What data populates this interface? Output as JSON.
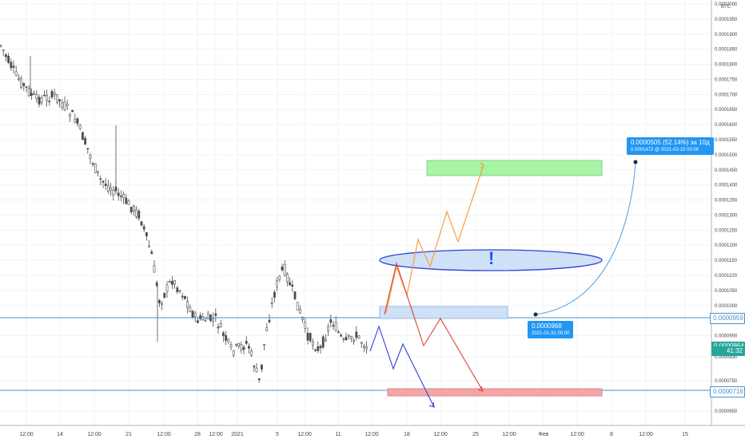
{
  "currency_label": "BTC",
  "price_axis": {
    "ticks": [
      {
        "v": 0.0002,
        "t": "0.0002000"
      },
      {
        "v": 0.000195,
        "t": "0.0001950"
      },
      {
        "v": 0.00019,
        "t": "0.0001900"
      },
      {
        "v": 0.000185,
        "t": "0.0001850"
      },
      {
        "v": 0.00018,
        "t": "0.0001800"
      },
      {
        "v": 0.000175,
        "t": "0.0001750"
      },
      {
        "v": 0.00017,
        "t": "0.0001700"
      },
      {
        "v": 0.000165,
        "t": "0.0001650"
      },
      {
        "v": 0.00016,
        "t": "0.0001600"
      },
      {
        "v": 0.000155,
        "t": "0.0001550"
      },
      {
        "v": 0.00015,
        "t": "0.0001500"
      },
      {
        "v": 0.000145,
        "t": "0.0001450"
      },
      {
        "v": 0.00014,
        "t": "0.0001400"
      },
      {
        "v": 0.000135,
        "t": "0.0001350"
      },
      {
        "v": 0.00013,
        "t": "0.0001300"
      },
      {
        "v": 0.000125,
        "t": "0.0001250"
      },
      {
        "v": 0.00012,
        "t": "0.0001200"
      },
      {
        "v": 0.000115,
        "t": "0.0001150"
      },
      {
        "v": 0.00011,
        "t": "0.0001100"
      },
      {
        "v": 0.000105,
        "t": "0.0001050"
      },
      {
        "v": 0.0001,
        "t": "0.0001000"
      },
      {
        "v": 9e-05,
        "t": "0.0000900"
      },
      {
        "v": 8.3e-05,
        "t": "0.0000830"
      },
      {
        "v": 7.5e-05,
        "t": "0.0000750"
      },
      {
        "v": 6.5e-05,
        "t": "0.0000650"
      }
    ]
  },
  "time_axis": {
    "ticks": [
      {
        "i": 0,
        "t": "12:00"
      },
      {
        "i": 1,
        "t": "14"
      },
      {
        "i": 2,
        "t": "12:00"
      },
      {
        "i": 3,
        "t": "21"
      },
      {
        "i": 4,
        "t": "12:00"
      },
      {
        "i": 5,
        "t": "28"
      },
      {
        "i": 6,
        "t": "12:00"
      },
      {
        "i": 7,
        "t": "2021"
      },
      {
        "i": 8,
        "t": "5"
      },
      {
        "i": 9,
        "t": "12:00"
      },
      {
        "i": 10,
        "t": "11"
      },
      {
        "i": 11,
        "t": "12:00"
      },
      {
        "i": 12,
        "t": "18"
      },
      {
        "i": 13,
        "t": "12:00"
      },
      {
        "i": 14,
        "t": "25"
      },
      {
        "i": 15,
        "t": "12:00"
      },
      {
        "i": 16,
        "t": "Фев"
      },
      {
        "i": 17,
        "t": "12:00"
      },
      {
        "i": 18,
        "t": "8"
      },
      {
        "i": 19,
        "t": "12:00"
      },
      {
        "i": 20,
        "t": "15"
      },
      {
        "i": 21,
        "t": "12:00"
      }
    ]
  },
  "price_tags": [
    {
      "text": "0.0000959",
      "value": 9.59e-05,
      "color": "#4a90c8",
      "style": "outline"
    },
    {
      "text": "0.0000864",
      "value": 8.64e-05,
      "color": "#26a69a",
      "style": "solid"
    },
    {
      "text": "41:32",
      "value": 8.48e-05,
      "color": "#26a69a",
      "style": "solid"
    },
    {
      "text": "0.0000716",
      "value": 7.16e-05,
      "color": "#4a90c8",
      "style": "outline"
    }
  ],
  "measure_tooltip": {
    "main": "0.0000505 (52.14%) за 10д",
    "sub": "0.0001472 @ 2021-02-10  00:00"
  },
  "start_tooltip": {
    "main": "0.0000968",
    "sub": "2021-01-31 00:00"
  },
  "annotation_marker": "!",
  "colors": {
    "up": "#26a69a",
    "down": "#ef5350",
    "candle": "#4d4d4d",
    "grid": "#f0f3fa",
    "hline": "#4a90c8",
    "bull_path": "#f5a040",
    "bear_path_red": "#e04030",
    "bear_path_blue": "#3040d8",
    "target_green": "#a5f5a5",
    "target_red": "#f5a5a8",
    "zone_blue": "#cfe1f7",
    "ellipse": "#3040d8",
    "curve": "#5aa5e8"
  }
}
